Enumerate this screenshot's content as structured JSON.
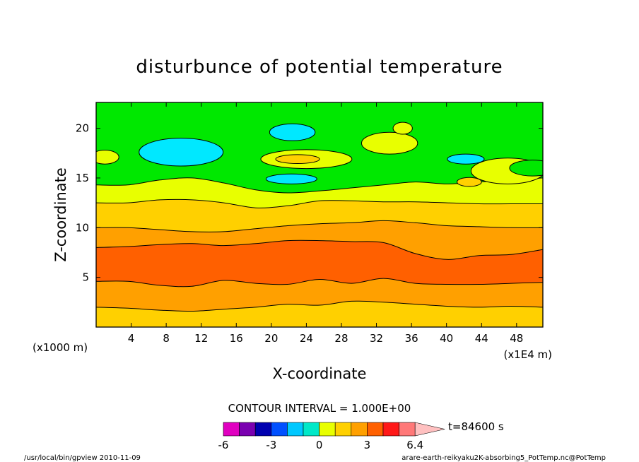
{
  "chart_data": {
    "type": "heatmap",
    "title": "disturbunce of potential temperature",
    "xlabel": "X-coordinate",
    "ylabel": "Z-coordinate",
    "x_unit": "(x1E4 m)",
    "y_unit": "(x1000 m)",
    "xlim": [
      0,
      51
    ],
    "ylim": [
      0,
      22.6
    ],
    "x_ticks": [
      4,
      8,
      12,
      16,
      20,
      24,
      28,
      32,
      36,
      40,
      44,
      48
    ],
    "y_ticks": [
      5,
      10,
      15,
      20
    ],
    "contour_interval_text": "CONTOUR INTERVAL = 1.000E+00",
    "time_text": "t=84600 s",
    "colorbar": {
      "colors": [
        "#e000c0",
        "#7a00b0",
        "#0000b0",
        "#0050ff",
        "#00c8ff",
        "#00e8c8",
        "#e8ff00",
        "#ffd000",
        "#ffa000",
        "#ff6000",
        "#ff1818",
        "#ff7878"
      ],
      "extend_color": "#ffc0c0",
      "tick_labels": [
        "-6",
        "-3",
        "0",
        "3",
        "6.4"
      ]
    },
    "levels": [
      {
        "value": "1",
        "color": "#ffd000",
        "z": [
          2.0,
          1.9,
          1.7,
          1.6,
          1.8,
          2.0,
          2.3,
          2.2,
          2.6,
          2.5,
          2.3,
          2.1,
          2.0,
          2.1,
          2.0
        ]
      },
      {
        "value": "2",
        "color": "#ffa000",
        "z": [
          4.6,
          4.6,
          4.2,
          4.1,
          4.7,
          4.4,
          4.3,
          4.8,
          4.4,
          4.9,
          4.4,
          4.3,
          4.3,
          4.4,
          4.5
        ]
      },
      {
        "value": "3",
        "color": "#ff6000",
        "z": [
          8.0,
          8.1,
          8.3,
          8.4,
          8.2,
          8.4,
          8.7,
          8.7,
          8.6,
          8.5,
          7.4,
          6.8,
          7.2,
          7.3,
          7.8
        ]
      },
      {
        "value": "2",
        "color": "#ffa000",
        "z": [
          10.0,
          10.0,
          9.8,
          9.6,
          9.6,
          9.9,
          10.2,
          10.4,
          10.5,
          10.7,
          10.5,
          10.2,
          10.1,
          10.0,
          10.0
        ]
      },
      {
        "value": "1",
        "color": "#ffd000",
        "z": [
          12.5,
          12.5,
          12.8,
          12.8,
          12.5,
          12.0,
          12.2,
          12.7,
          12.7,
          12.6,
          12.6,
          12.5,
          12.4,
          12.4,
          12.4
        ]
      },
      {
        "value": "0",
        "color": "#e8ff00",
        "z": [
          14.3,
          14.3,
          14.8,
          15.0,
          14.5,
          13.8,
          13.5,
          13.7,
          14.0,
          14.3,
          14.6,
          14.4,
          14.6,
          14.8,
          15.0
        ]
      }
    ],
    "upper_region_color": "#00e800",
    "blobs": [
      {
        "value": "-1",
        "color": "#00e8ff",
        "cx": 9.7,
        "cz": 17.6,
        "rx": 4.8,
        "rz": 1.4
      },
      {
        "value": "-1",
        "color": "#00e8ff",
        "cx": 22.4,
        "cz": 19.6,
        "rx": 2.6,
        "rz": 0.85
      },
      {
        "value": "-1",
        "color": "#00e8ff",
        "cx": 22.3,
        "cz": 14.9,
        "rx": 2.9,
        "rz": 0.5
      },
      {
        "value": "-1",
        "color": "#00e8ff",
        "cx": 42.2,
        "cz": 16.9,
        "rx": 2.1,
        "rz": 0.5
      },
      {
        "value": "0",
        "color": "#e8ff00",
        "cx": 24.0,
        "cz": 16.9,
        "rx": 5.2,
        "rz": 0.95
      },
      {
        "value": "1",
        "color": "#ffd000",
        "cx": 23.0,
        "cz": 16.9,
        "rx": 2.5,
        "rz": 0.45
      },
      {
        "value": "0",
        "color": "#e8ff00",
        "cx": 1.0,
        "cz": 17.1,
        "rx": 1.6,
        "rz": 0.7
      },
      {
        "value": "0",
        "color": "#e8ff00",
        "cx": 33.5,
        "cz": 18.5,
        "rx": 3.2,
        "rz": 1.1
      },
      {
        "value": "0",
        "color": "#e8ff00",
        "cx": 35.0,
        "cz": 20.0,
        "rx": 1.1,
        "rz": 0.6
      },
      {
        "value": "1",
        "color": "#ffd000",
        "cx": 42.6,
        "cz": 14.6,
        "rx": 1.4,
        "rz": 0.45
      },
      {
        "value": "0",
        "color": "#e8ff00",
        "cx": 47.0,
        "cz": 15.7,
        "rx": 4.2,
        "rz": 1.3
      },
      {
        "value": "-1",
        "color": "#00e800",
        "cx": 49.8,
        "cz": 16.0,
        "rx": 2.6,
        "rz": 0.8
      }
    ]
  },
  "footer": {
    "left": "/usr/local/bin/gpview  2010-11-09",
    "right": "arare-earth-reikyaku2K-absorbing5_PotTemp.nc@PotTemp"
  }
}
